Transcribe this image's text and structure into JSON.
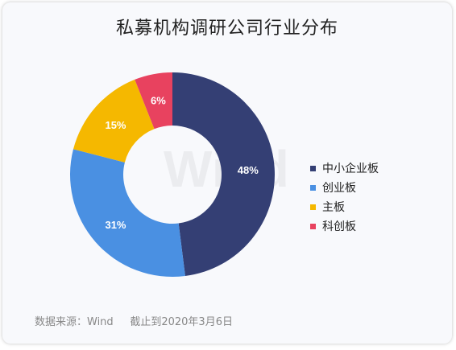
{
  "chart_data": {
    "type": "pie",
    "title": "私募机构调研公司行业分布",
    "categories": [
      "中小企业板",
      "创业板",
      "主板",
      "科创板"
    ],
    "values": [
      48,
      31,
      15,
      6
    ],
    "value_labels": [
      "48%",
      "31%",
      "15%",
      "6%"
    ],
    "colors": [
      "#343f74",
      "#4a90e2",
      "#f5b800",
      "#e8425f"
    ],
    "legend_placement": "right",
    "donut": true
  },
  "watermark": "Wind",
  "footer": {
    "source": "数据来源：Wind     截止到2020年3月6日"
  }
}
